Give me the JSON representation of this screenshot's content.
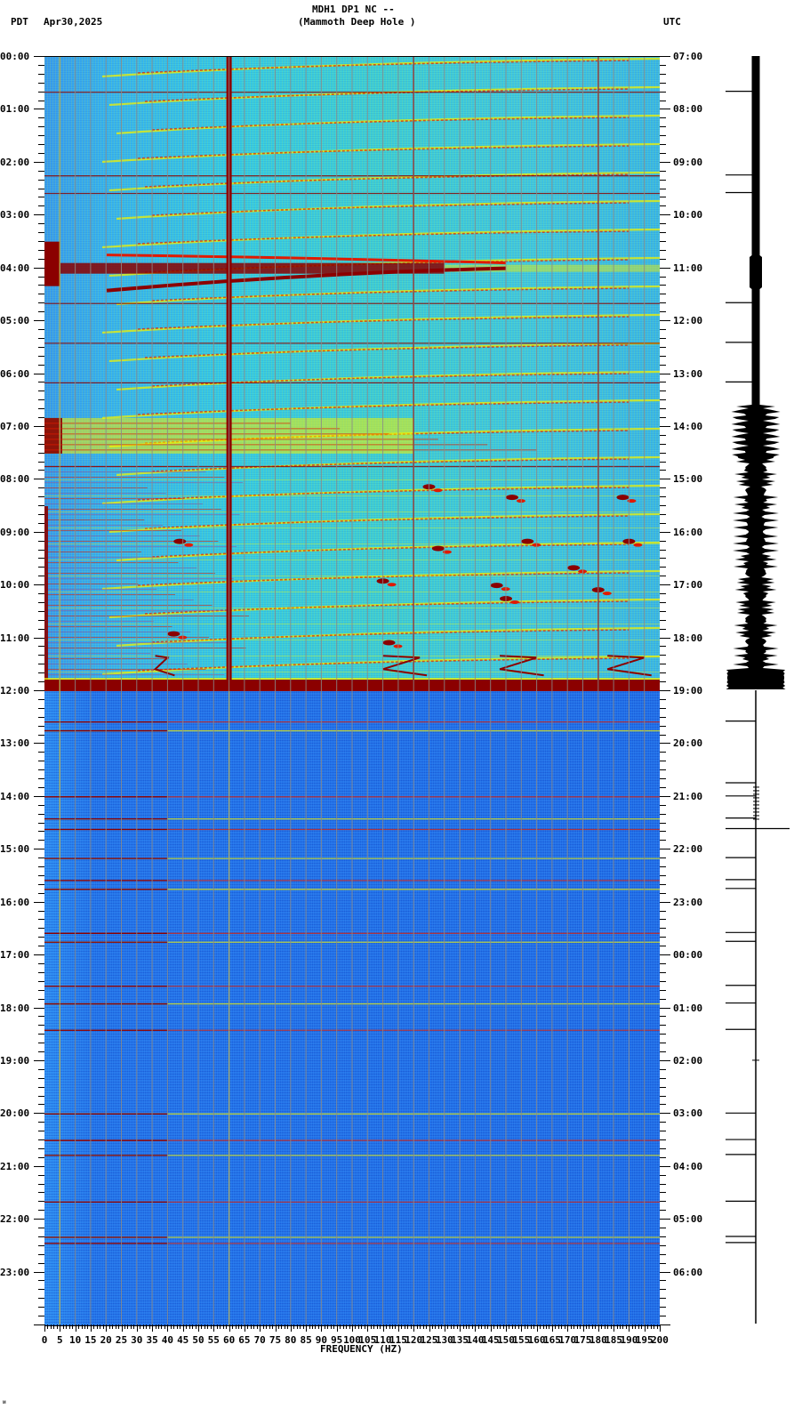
{
  "header": {
    "station_line": "MDH1 DP1 NC --",
    "location_line": "(Mammoth Deep Hole )",
    "left_timezone": "PDT",
    "date": "Apr30,2025",
    "right_timezone": "UTC"
  },
  "footer": {
    "xlabel": "FREQUENCY (HZ)",
    "corner_mark": "ᴍ"
  },
  "colors": {
    "background_quiet": "#1f6de6",
    "background_active": "#3fd2d8",
    "signal_yellow": "#f2f200",
    "signal_red": "#e01a00",
    "signal_darkred": "#8b0000",
    "grid": "#8a8a8a",
    "trace": "#000000"
  },
  "chart_data": {
    "type": "heatmap",
    "title": "MDH1 DP1 NC -- (Mammoth Deep Hole )",
    "subtitle": "Apr30,2025",
    "xlabel": "FREQUENCY (HZ)",
    "ylabel_left": "PDT",
    "ylabel_right": "UTC",
    "x_range": [
      0,
      200
    ],
    "x_ticks": [
      0,
      5,
      10,
      15,
      20,
      25,
      30,
      35,
      40,
      45,
      50,
      55,
      60,
      65,
      70,
      75,
      80,
      85,
      90,
      95,
      100,
      105,
      110,
      115,
      120,
      125,
      130,
      135,
      140,
      145,
      150,
      155,
      160,
      165,
      170,
      175,
      180,
      185,
      190,
      195,
      200
    ],
    "y_ticks_left": [
      "00:00",
      "01:00",
      "02:00",
      "03:00",
      "04:00",
      "05:00",
      "06:00",
      "07:00",
      "08:00",
      "09:00",
      "10:00",
      "11:00",
      "12:00",
      "13:00",
      "14:00",
      "15:00",
      "16:00",
      "17:00",
      "18:00",
      "19:00",
      "20:00",
      "21:00",
      "22:00",
      "23:00"
    ],
    "y_ticks_right": [
      "07:00",
      "08:00",
      "09:00",
      "10:00",
      "11:00",
      "12:00",
      "13:00",
      "14:00",
      "15:00",
      "16:00",
      "17:00",
      "18:00",
      "19:00",
      "20:00",
      "21:00",
      "22:00",
      "23:00",
      "00:00",
      "01:00",
      "02:00",
      "03:00",
      "04:00",
      "05:00",
      "06:00"
    ],
    "grid": true,
    "vertical_gridlines_every_hz": 5,
    "persistent_lines_hz": [
      5,
      60,
      120,
      180
    ],
    "features": [
      {
        "time_pdt": "00:00-12:00",
        "description": "elevated noise, rising harmonic tracks 20-200 Hz"
      },
      {
        "time_pdt": "03:50-04:20",
        "description": "strong broadband energy band 0-130 Hz"
      },
      {
        "time_pdt": "06:50-07:30",
        "description": "broadband energy band 0-120 Hz"
      },
      {
        "time_pdt": "07:45-11:45",
        "description": "scattered transient glides near 35-40, 110-120, 150-160, 185-195 Hz"
      },
      {
        "time_pdt": "11:50-12:00",
        "description": "saturated broadband burst 0-200 Hz"
      },
      {
        "time_pdt": "12:00-24:00",
        "description": "quiet background with intermittent horizontal glitch lines"
      }
    ],
    "glitch_lines_pdt": [
      "00:40",
      "02:15",
      "02:35",
      "04:40",
      "05:25",
      "06:10",
      "07:45",
      "12:35",
      "12:45",
      "14:00",
      "14:25",
      "14:37",
      "15:10",
      "15:35",
      "15:45",
      "16:35",
      "16:45",
      "17:35",
      "17:55",
      "18:25",
      "20:00",
      "20:30",
      "20:47",
      "21:40",
      "22:20",
      "22:27"
    ]
  },
  "seismogram": {
    "description": "Trace of ground motion per hour",
    "active_window_pdt": "00:00-12:00",
    "quiet_window_pdt": "12:00-24:00"
  }
}
